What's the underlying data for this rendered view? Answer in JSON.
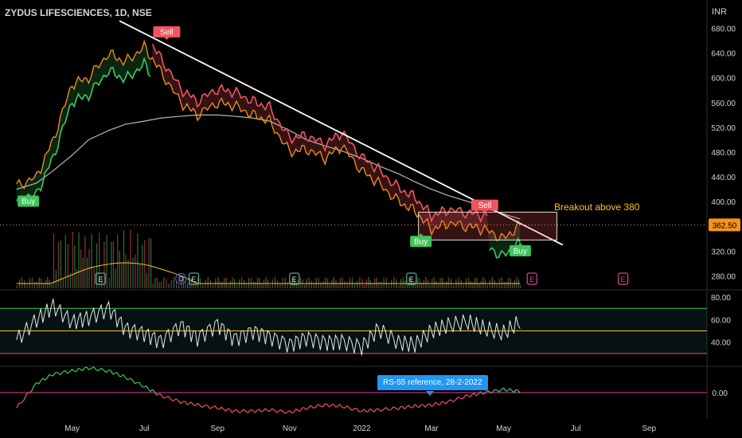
{
  "header": {
    "symbol": "ZYDUS LIFESCIENCES, 1D, NSE",
    "currency": "INR"
  },
  "colors": {
    "background": "#000000",
    "price_line": "#f7931a",
    "bull_band": "#3ecb5e",
    "bear_band": "#f0555f",
    "trendline": "#ffffff",
    "ma_line": "#b8b8b8",
    "buy_badge": "#3ec45a",
    "sell_badge": "#f0555f",
    "breakout_text": "#f5c518",
    "rsi_line": "#e8e8e8",
    "rsi_upper": "#3ecb5e",
    "rsi_mid": "#f5c518",
    "rsi_lower": "#f0555f",
    "rs_line": "#f0555f",
    "rs_line_up": "#3ecb5e",
    "rs_zero": "#e0409a",
    "tooltip_bg": "#2196f3",
    "price_tag": "#f7931a",
    "earnings_marker": "#4ab0a0"
  },
  "price_axis": {
    "ticks": [
      "680.00",
      "640.00",
      "600.00",
      "560.00",
      "520.00",
      "480.00",
      "440.00",
      "400.00",
      "360.00",
      "320.00",
      "280.00"
    ]
  },
  "rsi_axis": {
    "ticks": [
      "80.00",
      "60.00",
      "40.00"
    ]
  },
  "rs_axis": {
    "ticks": [
      "0.00"
    ]
  },
  "time_axis": {
    "labels": [
      "May",
      "Jul",
      "Sep",
      "Nov",
      "2022",
      "Mar",
      "May",
      "Jul",
      "Sep"
    ]
  },
  "last_price": "362.50",
  "annotations": {
    "breakout": "Breakout above 380",
    "rs_reference": "RS-55 reference, 28-2-2022",
    "buy_label": "Buy",
    "sell_label": "Sell",
    "earnings_label": "E",
    "dividend_label": "D"
  },
  "chart_data": {
    "type": "line",
    "title": "ZYDUS LIFESCIENCES, 1D, NSE",
    "ylabel": "INR",
    "ylim": [
      260,
      700
    ],
    "x": [
      "2021-03-15",
      "2021-04-01",
      "2021-04-15",
      "2021-05-01",
      "2021-05-15",
      "2021-06-01",
      "2021-06-15",
      "2021-07-01",
      "2021-07-15",
      "2021-08-01",
      "2021-08-15",
      "2021-09-01",
      "2021-09-15",
      "2021-10-01",
      "2021-10-15",
      "2021-11-01",
      "2021-11-15",
      "2021-12-01",
      "2021-12-15",
      "2022-01-01",
      "2022-01-15",
      "2022-02-01",
      "2022-02-15",
      "2022-03-01",
      "2022-03-15",
      "2022-04-01",
      "2022-04-15",
      "2022-05-01",
      "2022-05-15"
    ],
    "series": [
      {
        "values": [
          425,
          440,
          500,
          590,
          600,
          640,
          625,
          650,
          610,
          560,
          540,
          560,
          555,
          540,
          530,
          480,
          485,
          470,
          490,
          450,
          430,
          400,
          385,
          355,
          365,
          360,
          355,
          340,
          362
        ]
      }
    ],
    "moving_average": [
      420,
      430,
      450,
      475,
      500,
      515,
      525,
      530,
      535,
      538,
      540,
      540,
      538,
      535,
      530,
      515,
      500,
      490,
      482,
      470,
      458,
      445,
      432,
      420,
      410,
      400,
      390,
      380,
      372
    ],
    "buy_signals": [
      [
        "2021-03-25",
        420
      ],
      [
        "2022-02-20",
        355
      ],
      [
        "2022-05-15",
        340
      ]
    ],
    "sell_signals": [
      [
        "2021-07-20",
        655
      ],
      [
        "2022-04-15",
        375
      ]
    ],
    "last_price": 362.5,
    "breakout_level": 380,
    "rsi": {
      "ylim": [
        20,
        85
      ],
      "levels": [
        70,
        50,
        30
      ],
      "values": [
        42,
        60,
        72,
        58,
        62,
        70,
        52,
        48,
        41,
        55,
        44,
        56,
        43,
        50,
        45,
        38,
        44,
        40,
        41,
        36,
        52,
        40,
        38,
        50,
        55,
        58,
        52,
        48,
        58
      ]
    },
    "rs55": {
      "reference": "28-2-2022",
      "values": [
        -0.25,
        0.15,
        0.3,
        0.35,
        0.4,
        0.35,
        0.25,
        0.1,
        -0.05,
        -0.15,
        -0.2,
        -0.25,
        -0.3,
        -0.3,
        -0.28,
        -0.32,
        -0.25,
        -0.2,
        -0.22,
        -0.3,
        -0.28,
        -0.25,
        -0.22,
        -0.2,
        -0.15,
        -0.05,
        0.0,
        0.05,
        0.02
      ]
    }
  }
}
